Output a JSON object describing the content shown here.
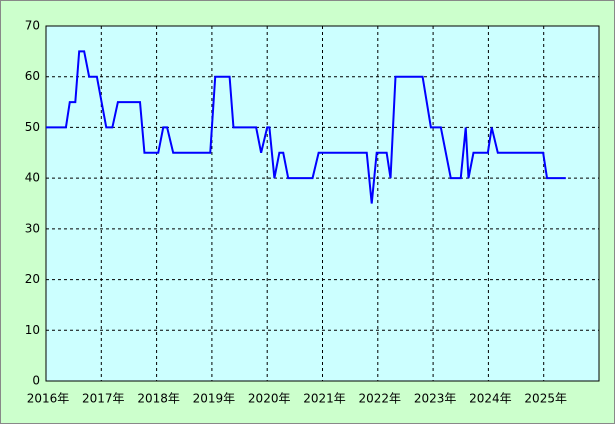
{
  "chart_data": {
    "type": "line",
    "x": [
      2016.0,
      2016.36,
      2016.43,
      2016.53,
      2016.6,
      2016.69,
      2016.78,
      2016.92,
      2017.09,
      2017.2,
      2017.3,
      2017.7,
      2017.78,
      2018.03,
      2018.12,
      2018.19,
      2018.3,
      2018.97,
      2019.06,
      2019.32,
      2019.39,
      2019.8,
      2019.89,
      2020.0,
      2020.04,
      2020.13,
      2020.22,
      2020.29,
      2020.38,
      2020.82,
      2020.93,
      2021.8,
      2021.89,
      2021.98,
      2022.16,
      2022.23,
      2022.32,
      2022.81,
      2022.96,
      2023.14,
      2023.32,
      2023.5,
      2023.59,
      2023.64,
      2023.73,
      2023.99,
      2024.06,
      2024.17,
      2024.99,
      2025.06,
      2025.4
    ],
    "series": [
      {
        "color": "#0000ff",
        "values": [
          50,
          50,
          55,
          55,
          65,
          65,
          60,
          60,
          50,
          50,
          55,
          55,
          45,
          45,
          50,
          50,
          45,
          45,
          60,
          60,
          50,
          50,
          45,
          50,
          50,
          40,
          45,
          45,
          40,
          40,
          45,
          45,
          35,
          45,
          45,
          40,
          60,
          60,
          50,
          50,
          40,
          40,
          50,
          40,
          45,
          45,
          50,
          45,
          45,
          40,
          40
        ]
      }
    ],
    "xlim": [
      2016,
      2026
    ],
    "xticks": [
      {
        "value": 2016,
        "label": "2016年"
      },
      {
        "value": 2017,
        "label": "2017年"
      },
      {
        "value": 2018,
        "label": "2018年"
      },
      {
        "value": 2019,
        "label": "2019年"
      },
      {
        "value": 2020,
        "label": "2020年"
      },
      {
        "value": 2021,
        "label": "2021年"
      },
      {
        "value": 2022,
        "label": "2022年"
      },
      {
        "value": 2023,
        "label": "2023年"
      },
      {
        "value": 2024,
        "label": "2024年"
      },
      {
        "value": 2025,
        "label": "2025年"
      }
    ],
    "ylim": [
      0,
      70
    ],
    "yticks": [
      0,
      10,
      20,
      30,
      40,
      50,
      60,
      70
    ],
    "grid": true
  }
}
